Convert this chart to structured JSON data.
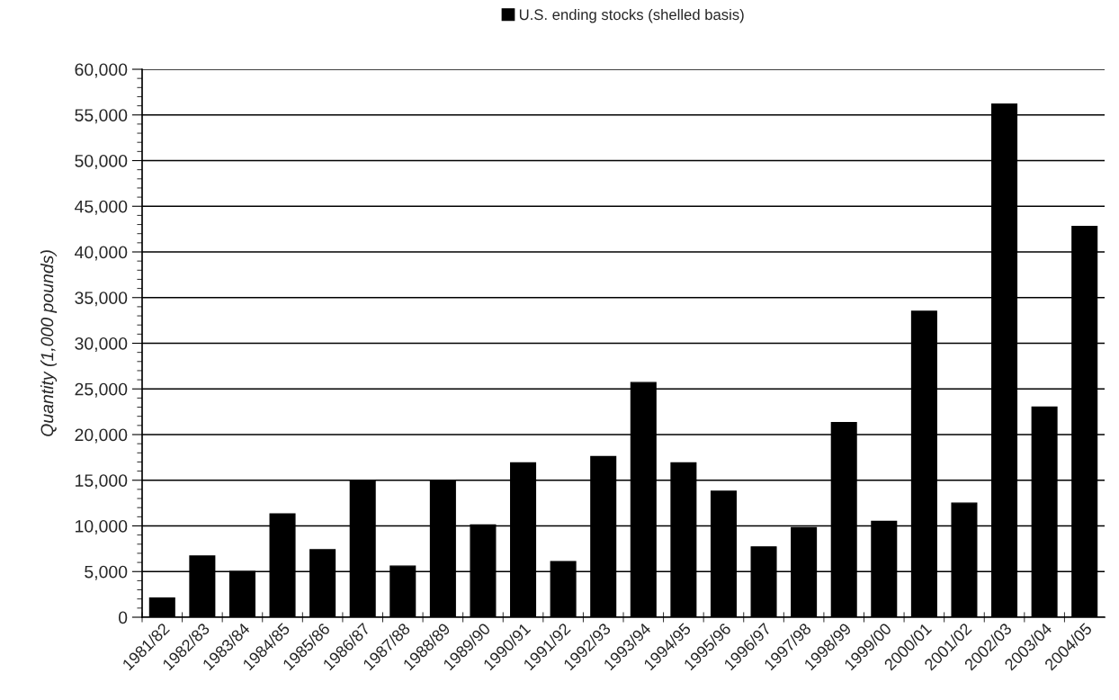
{
  "chart_data": {
    "type": "bar",
    "ylabel": "Quantity (1,000 pounds)",
    "categories": [
      "1981/82",
      "1982/83",
      "1983/84",
      "1984/85",
      "1985/86",
      "1986/87",
      "1987/88",
      "1988/89",
      "1989/90",
      "1990/91",
      "1991/92",
      "1992/93",
      "1993/94",
      "1994/95",
      "1995/96",
      "1996/97",
      "1997/98",
      "1998/99",
      "1999/00",
      "2000/01",
      "2001/02",
      "2002/03",
      "2003/04",
      "2004/05"
    ],
    "series": [
      {
        "name": "U.S. ending stocks (shelled basis)",
        "color": "#000000",
        "values": [
          2100,
          6700,
          5000,
          11300,
          7400,
          15000,
          5600,
          15000,
          10100,
          16900,
          6100,
          17600,
          25700,
          16900,
          13800,
          7700,
          9800,
          21300,
          10500,
          33500,
          12500,
          56200,
          23000,
          42800
        ]
      }
    ],
    "ylim": [
      0,
      60000
    ],
    "yticks": [
      {
        "value": 0,
        "label": "0"
      },
      {
        "value": 5000,
        "label": "5,000"
      },
      {
        "value": 10000,
        "label": "10,000"
      },
      {
        "value": 15000,
        "label": "15,000"
      },
      {
        "value": 20000,
        "label": "20,000"
      },
      {
        "value": 25000,
        "label": "25,000"
      },
      {
        "value": 30000,
        "label": "30,000"
      },
      {
        "value": 35000,
        "label": "35,000"
      },
      {
        "value": 40000,
        "label": "40,000"
      },
      {
        "value": 45000,
        "label": "45,000"
      },
      {
        "value": 50000,
        "label": "50,000"
      },
      {
        "value": 55000,
        "label": "55,000"
      },
      {
        "value": 60000,
        "label": "60,000"
      }
    ],
    "grid": "y",
    "legend": "top"
  }
}
